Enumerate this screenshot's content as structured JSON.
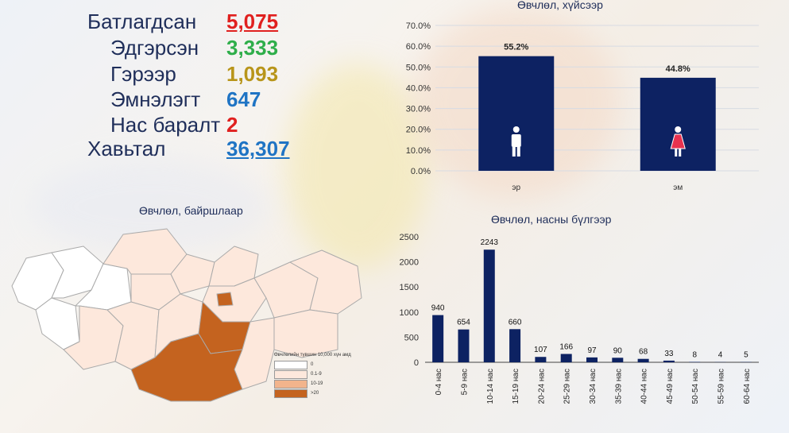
{
  "stats": {
    "confirmed": {
      "label": "Батлагдсан",
      "value": "5,075",
      "color": "#e0201f"
    },
    "recovered": {
      "label": "Эдгэрсэн",
      "value": "3,333",
      "color": "#2eae4a"
    },
    "home": {
      "label": "Гэрээр",
      "value": "1,093",
      "color": "#b8951a"
    },
    "hospital": {
      "label": "Эмнэлэгт",
      "value": "647",
      "color": "#1f74c4"
    },
    "deaths": {
      "label": "Нас баралт",
      "value": "2",
      "color": "#e0201f"
    },
    "vaccinated": {
      "label": "Хавьтал",
      "value": "36,307",
      "color": "#1f74c4"
    }
  },
  "gender_chart": {
    "title": "Өвчлөл, хүйсээр",
    "chart_data": {
      "type": "bar",
      "categories": [
        "эр",
        "эм"
      ],
      "values": [
        55.2,
        44.8
      ],
      "value_labels": [
        "55.2%",
        "44.8%"
      ],
      "ylim": [
        0,
        70
      ],
      "yticks": [
        "0.0%",
        "10.0%",
        "20.0%",
        "30.0%",
        "40.0%",
        "50.0%",
        "60.0%",
        "70.0%"
      ],
      "bar_color": "#0d2262",
      "icons": [
        "male-icon",
        "female-icon"
      ]
    }
  },
  "age_chart": {
    "title": "Өвчлөл, насны бүлгээр",
    "chart_data": {
      "type": "bar",
      "categories": [
        "0-4 нас",
        "5-9 нас",
        "10-14 нас",
        "15-19 нас",
        "20-24 нас",
        "25-29 нас",
        "30-34 нас",
        "35-39 нас",
        "40-44 нас",
        "45-49 нас",
        "50-54 нас",
        "55-59 нас",
        "60-64 нас"
      ],
      "values": [
        940,
        654,
        2243,
        660,
        107,
        166,
        97,
        90,
        68,
        33,
        8,
        4,
        5
      ],
      "ylim": [
        0,
        2500
      ],
      "yticks": [
        "0",
        "500",
        "1000",
        "1500",
        "2000",
        "2500"
      ],
      "bar_color": "#0d2262"
    }
  },
  "map": {
    "title": "Өвчлөл, байршлаар",
    "legend_title": "Өвчлөлийн түвшин 10,000 хүн амд",
    "legend_items": [
      {
        "label": "0",
        "color": "#ffffff"
      },
      {
        "label": "0.1-9",
        "color": "#fde8dc"
      },
      {
        "label": "10-19",
        "color": "#f2b48c"
      },
      {
        "label": ">20",
        "color": "#c4631f"
      }
    ]
  }
}
